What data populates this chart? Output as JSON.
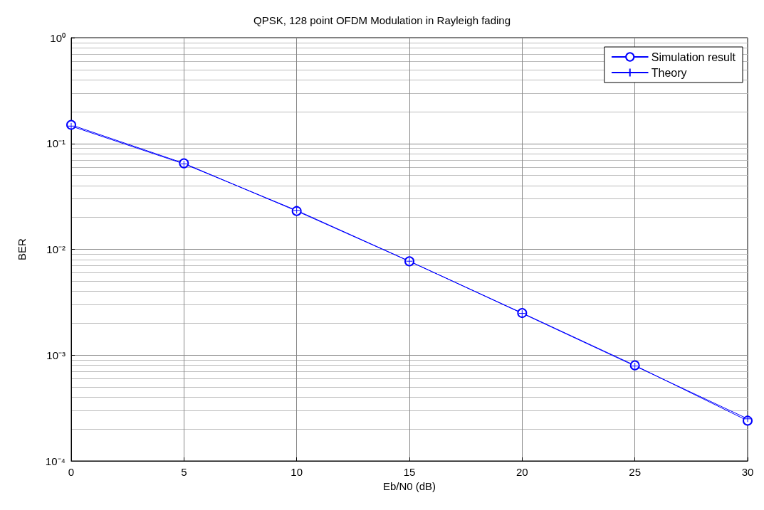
{
  "chart_data": {
    "type": "line",
    "title": "QPSK, 128 point OFDM Modulation in Rayleigh fading",
    "xlabel": "Eb/N0 (dB)",
    "ylabel": "BER",
    "x": [
      0,
      5,
      10,
      15,
      20,
      25,
      30
    ],
    "series": [
      {
        "name": "Simulation result",
        "color": "#0000ff",
        "marker": "circle",
        "values": [
          0.15,
          0.065,
          0.023,
          0.0077,
          0.0025,
          0.0008,
          0.00024
        ]
      },
      {
        "name": "Theory",
        "color": "#0000ff",
        "marker": "cross",
        "values": [
          0.146,
          0.0642,
          0.0233,
          0.00772,
          0.00248,
          0.00079,
          0.00025
        ]
      }
    ],
    "xlim": [
      0,
      30
    ],
    "xticks": [
      0,
      5,
      10,
      15,
      20,
      25,
      30
    ],
    "ylim": [
      0.0001,
      1
    ],
    "yticks": [
      {
        "value": 0.0001,
        "label": "10⁻⁴"
      },
      {
        "value": 0.001,
        "label": "10⁻³"
      },
      {
        "value": 0.01,
        "label": "10⁻²"
      },
      {
        "value": 0.1,
        "label": "10⁻¹"
      },
      {
        "value": 1,
        "label": "10⁰"
      }
    ],
    "log": "y",
    "grid": true,
    "legend": "top right",
    "line_style": "solid"
  }
}
